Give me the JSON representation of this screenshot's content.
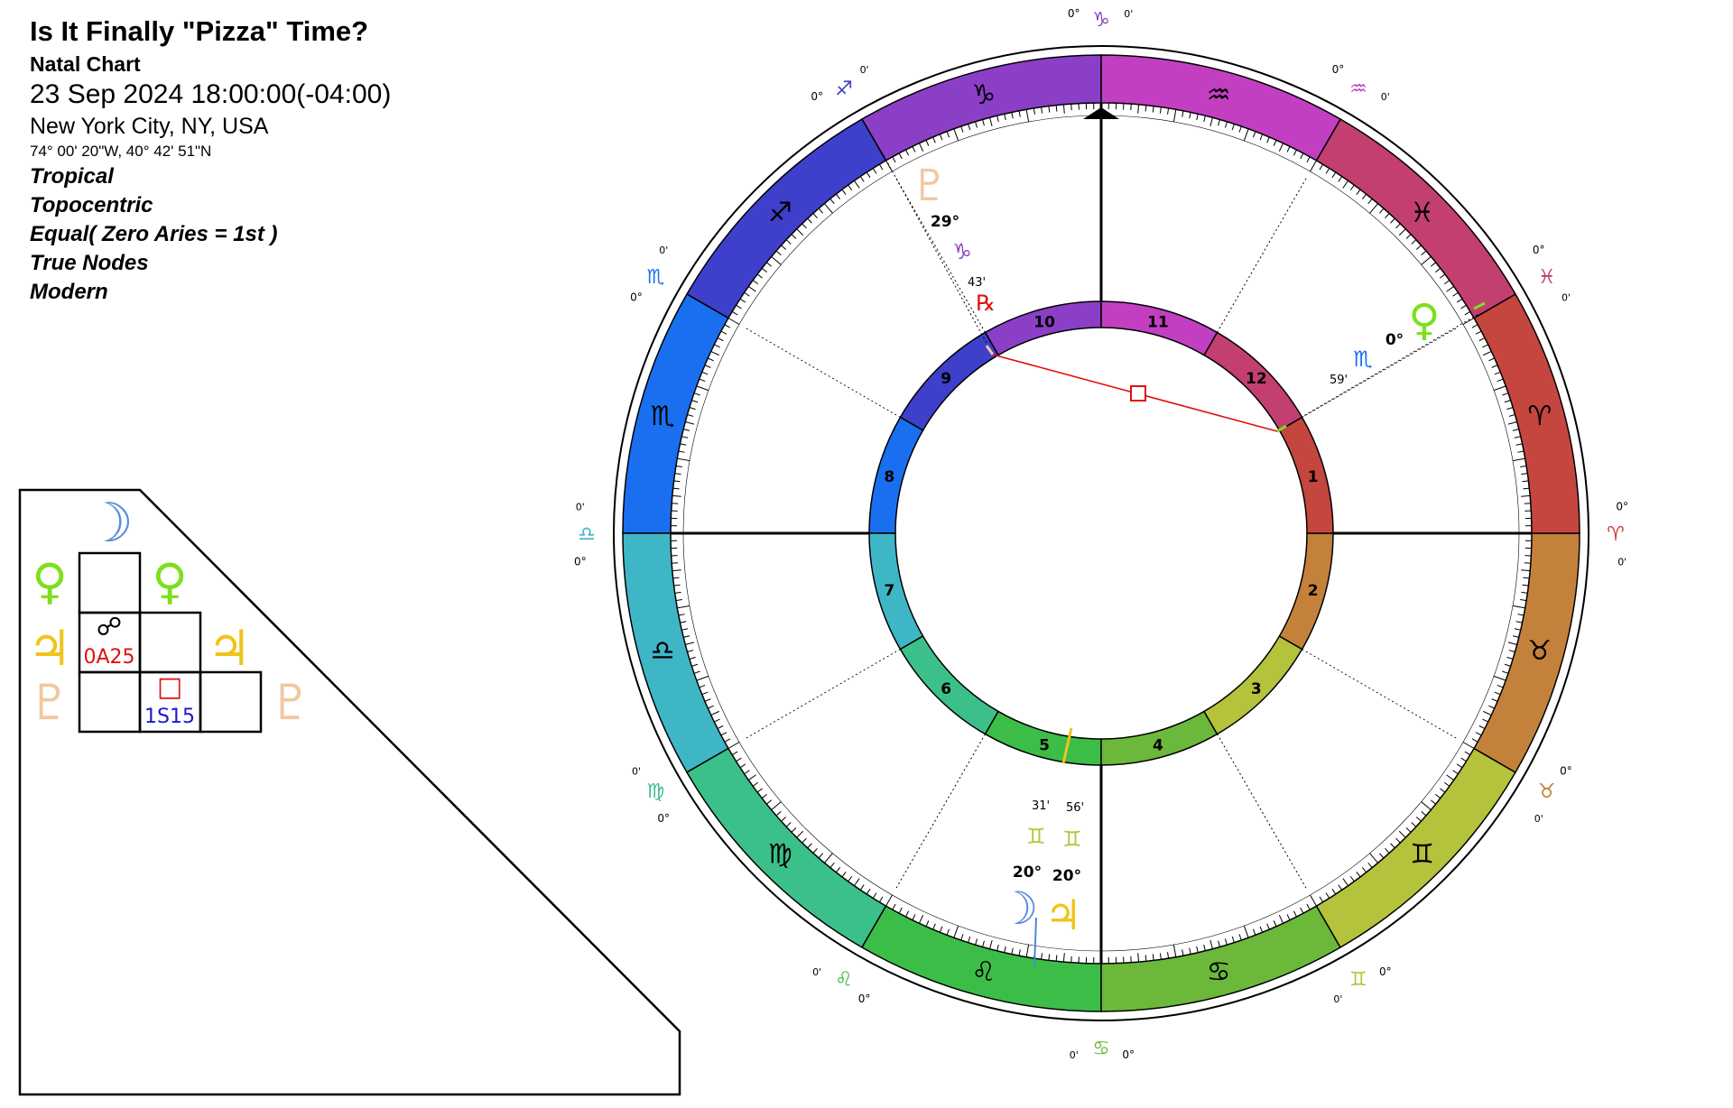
{
  "header": {
    "title": "Is It Finally \"Pizza\" Time?",
    "chart_type": "Natal Chart",
    "datetime": "23 Sep 2024 18:00:00(-04:00)",
    "location": "New York City, NY, USA",
    "coordinates": "74° 00' 20\"W, 40° 42' 51\"N",
    "options": [
      "Tropical",
      "Topocentric",
      "Equal( Zero Aries = 1st )",
      "True Nodes",
      "Modern"
    ]
  },
  "colors": {
    "capricorn": "#8b3fc6",
    "sagittarius": "#3e3fca",
    "scorpio": "#1a6ff0",
    "libra": "#3fb6c6",
    "virgo": "#3cc08a",
    "leo": "#3cbd48",
    "cancer": "#6bb83b",
    "gemini": "#b5c23b",
    "taurus": "#c4813b",
    "aries": "#c4463f",
    "pisces": "#c23f6f",
    "aquarius": "#c23fc2",
    "opposition": "#000000",
    "square": "#e01010",
    "sextile": "#1a1acc"
  },
  "zodiac": [
    {
      "sign": "capricorn",
      "glyph": "♑",
      "label": "0°",
      "min": "0'"
    },
    {
      "sign": "sagittarius",
      "glyph": "♐",
      "label": "0°",
      "min": "0'"
    },
    {
      "sign": "scorpio",
      "glyph": "♏",
      "label": "0°",
      "min": "0'"
    },
    {
      "sign": "libra",
      "glyph": "♎",
      "label": "0°",
      "min": "0'"
    },
    {
      "sign": "virgo",
      "glyph": "♍",
      "label": "0°",
      "min": "0'"
    },
    {
      "sign": "leo",
      "glyph": "♌",
      "label": "0°",
      "min": "0'"
    },
    {
      "sign": "cancer",
      "glyph": "♋",
      "label": "0°",
      "min": "0'"
    },
    {
      "sign": "gemini",
      "glyph": "♊",
      "label": "0°",
      "min": "0'"
    },
    {
      "sign": "taurus",
      "glyph": "♉",
      "label": "0°",
      "min": "0'"
    },
    {
      "sign": "aries",
      "glyph": "♈",
      "label": "0°",
      "min": "0'"
    },
    {
      "sign": "pisces",
      "glyph": "♓",
      "label": "0°",
      "min": "0'"
    },
    {
      "sign": "aquarius",
      "glyph": "♒",
      "label": "0°",
      "min": "0'"
    }
  ],
  "houses": [
    "10",
    "9",
    "8",
    "7",
    "6",
    "5",
    "4",
    "3",
    "2",
    "1",
    "12",
    "11"
  ],
  "planets": [
    {
      "name": "Pluto",
      "glyph": "♇",
      "degree": "29°",
      "sign_glyph": "♑",
      "minutes": "43'",
      "retro": "℞",
      "color": "#f0c8a0",
      "sign_color": "#8b3fc6"
    },
    {
      "name": "Venus",
      "glyph": "♀",
      "degree": "0°",
      "sign_glyph": "♏",
      "minutes": "59'",
      "color": "#7ce01c",
      "sign_color": "#1a6ff0"
    },
    {
      "name": "Moon",
      "glyph": "☽",
      "degree": "20°",
      "sign_glyph": "♊",
      "minutes": "31'",
      "color": "#5b8cdc",
      "sign_color": "#b5c23b"
    },
    {
      "name": "Jupiter",
      "glyph": "♃",
      "degree": "20°",
      "sign_glyph": "♊",
      "minutes": "56'",
      "color": "#f0c418",
      "sign_color": "#b5c23b"
    }
  ],
  "aspect_grid": {
    "row_glyphs": [
      {
        "glyph": "☽",
        "color": "#5b8cdc"
      },
      {
        "glyph": "♀",
        "color": "#7ce01c"
      },
      {
        "glyph": "♃",
        "color": "#f0c418"
      },
      {
        "glyph": "♇",
        "color": "#f0c8a0"
      }
    ],
    "cells": [
      {
        "glyph": "☍",
        "orb": "0A25"
      },
      {
        "glyph": "□",
        "orb": "1S15"
      }
    ]
  }
}
